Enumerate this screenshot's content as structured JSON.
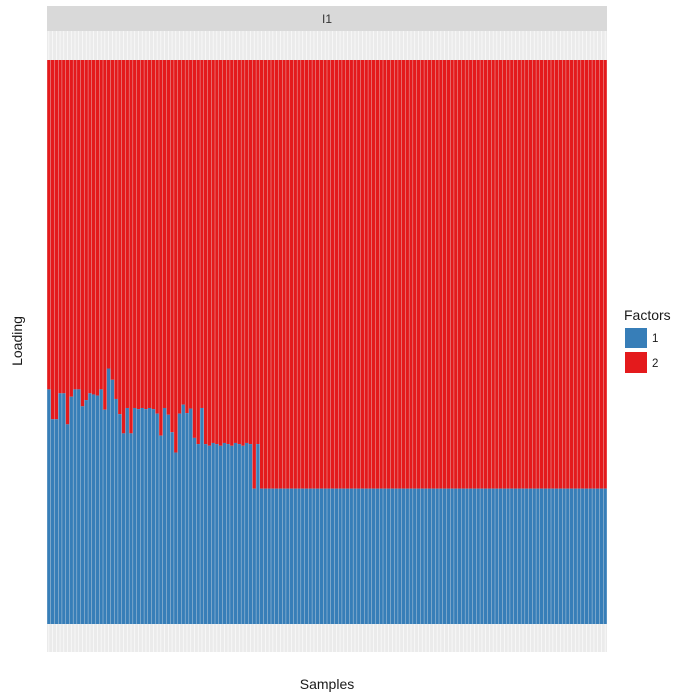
{
  "chart_data": {
    "type": "bar",
    "stacked": true,
    "normalized": true,
    "facet_label": "I1",
    "xlabel": "Samples",
    "ylabel": "Loading",
    "ylim": [
      0,
      1
    ],
    "grid": true,
    "legend": {
      "title": "Factors",
      "placement": "right",
      "entries": [
        {
          "name": "1",
          "color": "#377EB8"
        },
        {
          "name": "2",
          "color": "#E41A1C"
        }
      ]
    },
    "series": [
      {
        "name": "1",
        "color": "#377EB8",
        "values": [
          0.416,
          0.363,
          0.363,
          0.409,
          0.409,
          0.354,
          0.403,
          0.416,
          0.416,
          0.386,
          0.397,
          0.409,
          0.407,
          0.405,
          0.416,
          0.38,
          0.453,
          0.433,
          0.399,
          0.372,
          0.338,
          0.383,
          0.338,
          0.383,
          0.381,
          0.383,
          0.381,
          0.383,
          0.381,
          0.373,
          0.334,
          0.383,
          0.371,
          0.34,
          0.304,
          0.373,
          0.389,
          0.374,
          0.382,
          0.33,
          0.319,
          0.383,
          0.319,
          0.316,
          0.321,
          0.319,
          0.316,
          0.321,
          0.319,
          0.316,
          0.321,
          0.319,
          0.316,
          0.321,
          0.319,
          0.24,
          0.319,
          0.24,
          0.24,
          0.24,
          0.24,
          0.24,
          0.24,
          0.24,
          0.24,
          0.24,
          0.24,
          0.24,
          0.24,
          0.24,
          0.24,
          0.24,
          0.24,
          0.24,
          0.24,
          0.24,
          0.24,
          0.24,
          0.24,
          0.24,
          0.24,
          0.24,
          0.24,
          0.24,
          0.24,
          0.24,
          0.24,
          0.24,
          0.24,
          0.24,
          0.24,
          0.24,
          0.24,
          0.24,
          0.24,
          0.24,
          0.24,
          0.24,
          0.24,
          0.24,
          0.24,
          0.24,
          0.24,
          0.24,
          0.24,
          0.24,
          0.24,
          0.24,
          0.24,
          0.24,
          0.24,
          0.24,
          0.24,
          0.24,
          0.24,
          0.24,
          0.24,
          0.24,
          0.24,
          0.24,
          0.24,
          0.24,
          0.24,
          0.24,
          0.24,
          0.24,
          0.24,
          0.24,
          0.24,
          0.24,
          0.24,
          0.24,
          0.24,
          0.24,
          0.24,
          0.24,
          0.24,
          0.24,
          0.24,
          0.24,
          0.24,
          0.24,
          0.24,
          0.24,
          0.24,
          0.24,
          0.24,
          0.24,
          0.24,
          0.24
        ]
      }
    ]
  }
}
